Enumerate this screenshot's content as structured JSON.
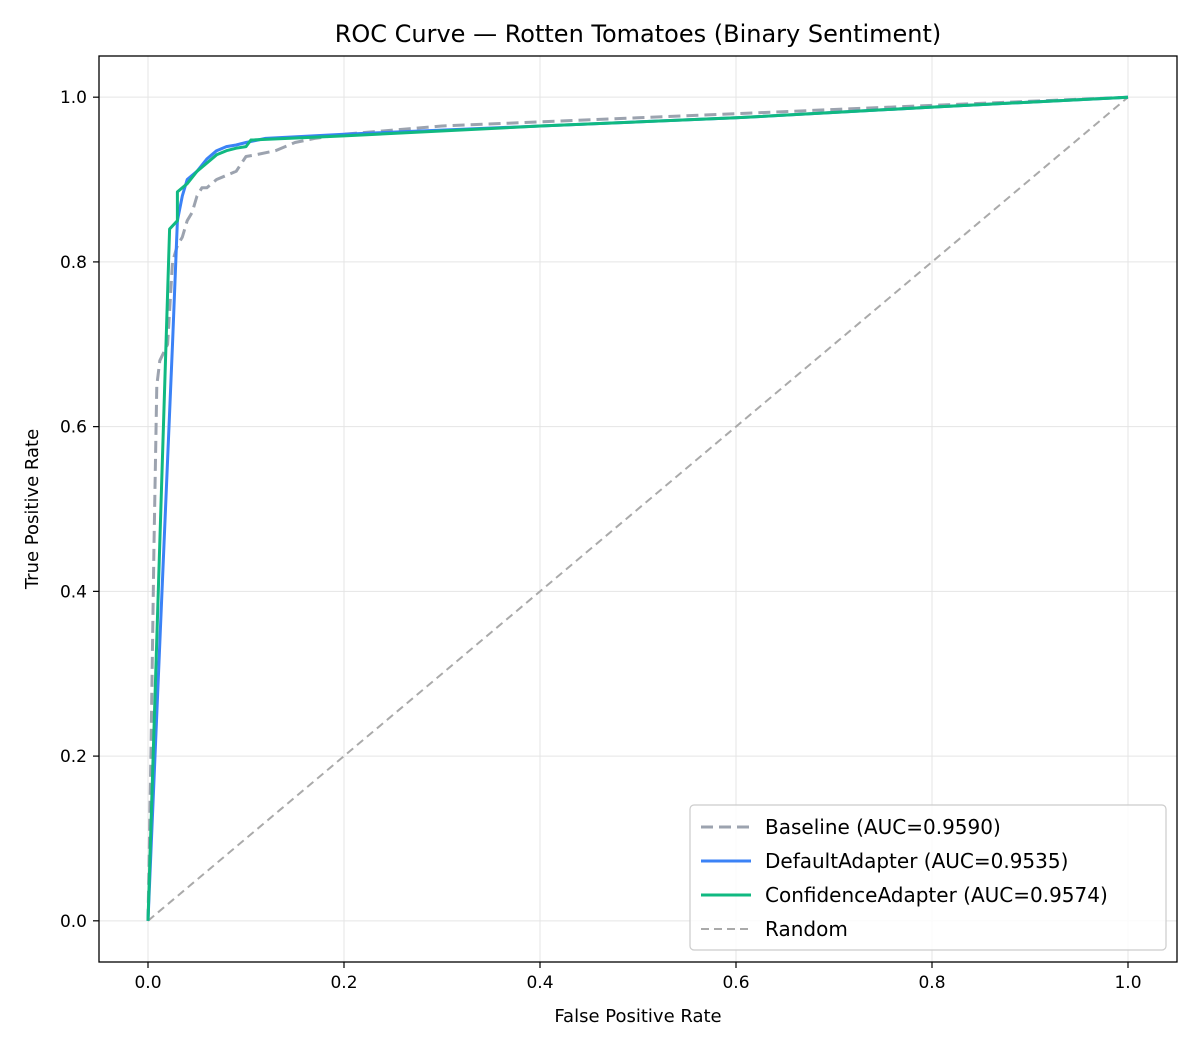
{
  "chart_data": {
    "type": "line",
    "title": "ROC Curve — Rotten Tomatoes (Binary Sentiment)",
    "xlabel": "False Positive Rate",
    "ylabel": "True Positive Rate",
    "xlim": [
      -0.05,
      1.05
    ],
    "ylim": [
      -0.05,
      1.05
    ],
    "xticks": [
      "0.0",
      "0.2",
      "0.4",
      "0.6",
      "0.8",
      "1.0"
    ],
    "yticks": [
      "0.0",
      "0.2",
      "0.4",
      "0.6",
      "0.8",
      "1.0"
    ],
    "grid": true,
    "legend_position": "lower-right",
    "series": [
      {
        "name": "Baseline (AUC=0.9590)",
        "color": "#9ca3af",
        "style": "dashed",
        "x": [
          0.0,
          0.003,
          0.006,
          0.009,
          0.012,
          0.02,
          0.025,
          0.03,
          0.035,
          0.04,
          0.045,
          0.05,
          0.055,
          0.06,
          0.07,
          0.08,
          0.09,
          0.1,
          0.11,
          0.13,
          0.15,
          0.17,
          0.2,
          0.3,
          0.4,
          0.5,
          0.6,
          0.7,
          0.8,
          0.9,
          1.0
        ],
        "y": [
          0.0,
          0.2,
          0.45,
          0.65,
          0.68,
          0.7,
          0.8,
          0.82,
          0.83,
          0.85,
          0.86,
          0.88,
          0.89,
          0.89,
          0.9,
          0.905,
          0.91,
          0.928,
          0.93,
          0.935,
          0.945,
          0.95,
          0.955,
          0.965,
          0.97,
          0.975,
          0.98,
          0.985,
          0.99,
          0.995,
          1.0
        ]
      },
      {
        "name": "DefaultAdapter (AUC=0.9535)",
        "color": "#3b82f6",
        "style": "solid",
        "x": [
          0.0,
          0.025,
          0.03,
          0.035,
          0.04,
          0.05,
          0.06,
          0.07,
          0.08,
          0.09,
          0.1,
          0.12,
          0.2,
          0.4,
          0.6,
          0.8,
          1.0
        ],
        "y": [
          0.0,
          0.7,
          0.85,
          0.88,
          0.9,
          0.91,
          0.925,
          0.935,
          0.94,
          0.942,
          0.945,
          0.95,
          0.955,
          0.965,
          0.975,
          0.988,
          1.0
        ]
      },
      {
        "name": "ConfidenceAdapter (AUC=0.9574)",
        "color": "#10b981",
        "style": "solid",
        "x": [
          0.0,
          0.022,
          0.03,
          0.03,
          0.04,
          0.05,
          0.06,
          0.07,
          0.08,
          0.09,
          0.1,
          0.105,
          0.2,
          0.4,
          0.6,
          0.8,
          1.0
        ],
        "y": [
          0.0,
          0.84,
          0.85,
          0.885,
          0.895,
          0.91,
          0.92,
          0.93,
          0.935,
          0.938,
          0.94,
          0.948,
          0.953,
          0.965,
          0.975,
          0.988,
          1.0
        ]
      },
      {
        "name": "Random",
        "color": "#aaaaaa",
        "style": "dashed",
        "x": [
          0.0,
          1.0
        ],
        "y": [
          0.0,
          1.0
        ]
      }
    ]
  }
}
